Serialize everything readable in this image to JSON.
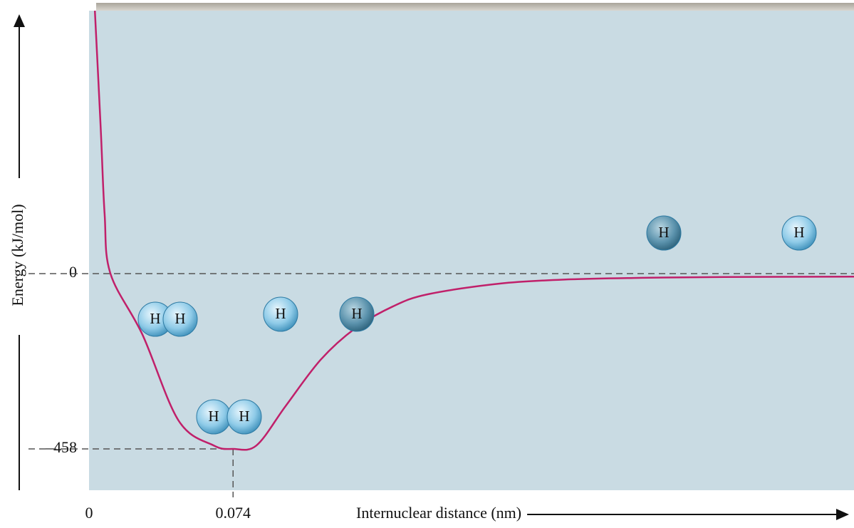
{
  "chart_data": {
    "type": "line",
    "x_label": "Internuclear distance (nm)",
    "y_label": "Energy (kJ/mol)",
    "x": [
      0.003,
      0.006,
      0.008,
      0.011,
      0.0275,
      0.046,
      0.064,
      0.074,
      0.086,
      0.101,
      0.119,
      0.137,
      0.156,
      0.174,
      0.211,
      0.247,
      0.284,
      0.321,
      0.393
    ],
    "series": [
      {
        "color": "#c0206a",
        "values": [
          687,
          380,
          156,
          0,
          -160,
          -384,
          -449,
          -458,
          -449,
          -346,
          -225,
          -142,
          -86,
          -54,
          -26,
          -15,
          -11,
          -9,
          -8
        ]
      }
    ],
    "xlim": [
      0,
      0.393
    ],
    "ylim": [
      -566,
      687
    ],
    "xticks": [
      0,
      0.074
    ],
    "yticks": [
      0,
      {
        "value": -458,
        "label": "–458"
      }
    ],
    "molecules": [
      [
        "H",
        "H"
      ],
      [
        "H"
      ],
      [
        "H"
      ],
      [
        "H",
        "H"
      ],
      [
        "H"
      ],
      [
        "H"
      ]
    ]
  }
}
